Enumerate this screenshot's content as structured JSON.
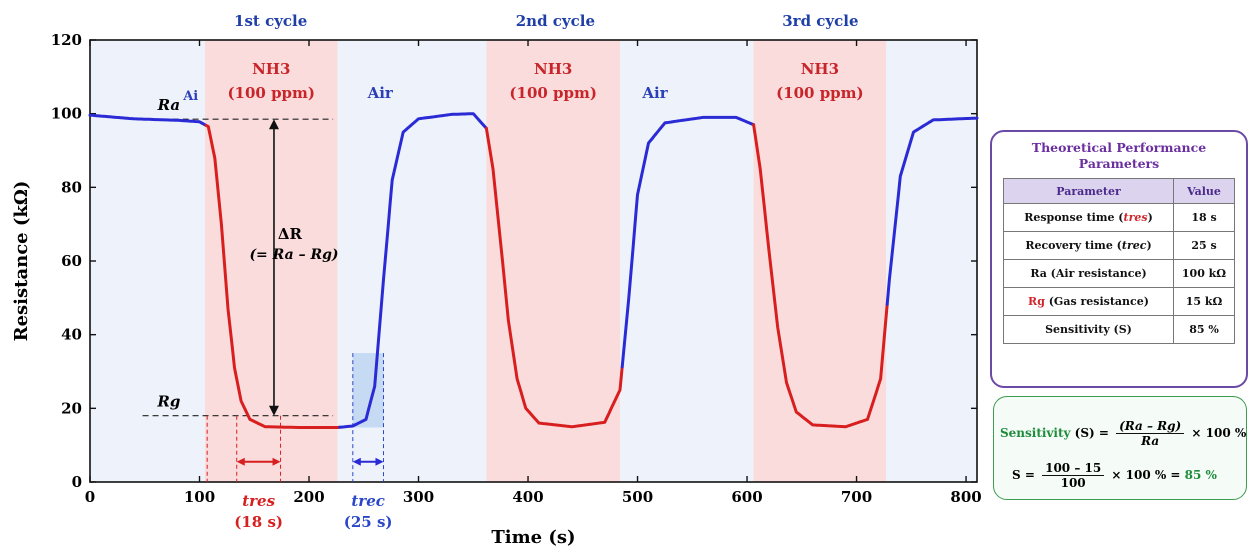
{
  "chart_data": {
    "type": "line",
    "xlabel": "Time (s)",
    "ylabel": "Resistance (kΩ)",
    "xlim": [
      0,
      810
    ],
    "ylim": [
      0,
      120
    ],
    "x_ticks": [
      0,
      100,
      200,
      300,
      400,
      500,
      600,
      700,
      800
    ],
    "y_ticks": [
      0,
      20,
      40,
      60,
      80,
      100,
      120
    ],
    "cycle_labels": [
      {
        "label": "1st cycle",
        "x": 165
      },
      {
        "label": "2nd cycle",
        "x": 425
      },
      {
        "label": "3rd cycle",
        "x": 667
      }
    ],
    "regions": [
      {
        "type": "gas",
        "label1": "NH3",
        "label2": "(100 ppm)",
        "x0": 105,
        "x1": 226
      },
      {
        "type": "gas",
        "label1": "NH3",
        "label2": "(100 ppm)",
        "x0": 362,
        "x1": 484
      },
      {
        "type": "gas",
        "label1": "NH3",
        "label2": "(100 ppm)",
        "x0": 606,
        "x1": 727
      }
    ],
    "air_labels": [
      {
        "label": "Air",
        "x": 265
      },
      {
        "label": "Air",
        "x": 516
      }
    ],
    "series": [
      {
        "color_air": "#2b2bd6",
        "color_gas": "#d81f1f",
        "points": [
          [
            0,
            99.6
          ],
          [
            40,
            98.6
          ],
          [
            80,
            98.2
          ],
          [
            100,
            97.8
          ],
          [
            108,
            96.5
          ],
          [
            114,
            88
          ],
          [
            120,
            70
          ],
          [
            126,
            47
          ],
          [
            132,
            31
          ],
          [
            138,
            22
          ],
          [
            146,
            17
          ],
          [
            160,
            15
          ],
          [
            190,
            14.8
          ],
          [
            226,
            14.8
          ],
          [
            240,
            15.2
          ],
          [
            252,
            17
          ],
          [
            260,
            26
          ],
          [
            268,
            55
          ],
          [
            276,
            82
          ],
          [
            286,
            95
          ],
          [
            300,
            98.6
          ],
          [
            330,
            99.8
          ],
          [
            350,
            100
          ],
          [
            362,
            96
          ],
          [
            368,
            85
          ],
          [
            375,
            65
          ],
          [
            382,
            44
          ],
          [
            390,
            28
          ],
          [
            398,
            20
          ],
          [
            410,
            16
          ],
          [
            440,
            15
          ],
          [
            470,
            16.2
          ],
          [
            484,
            25
          ],
          [
            492,
            50
          ],
          [
            500,
            78
          ],
          [
            510,
            92
          ],
          [
            525,
            97.5
          ],
          [
            560,
            99
          ],
          [
            590,
            99
          ],
          [
            606,
            97
          ],
          [
            612,
            85
          ],
          [
            620,
            63
          ],
          [
            628,
            42
          ],
          [
            636,
            27
          ],
          [
            645,
            19
          ],
          [
            660,
            15.5
          ],
          [
            690,
            15
          ],
          [
            710,
            17
          ],
          [
            722,
            28
          ],
          [
            730,
            55
          ],
          [
            740,
            83
          ],
          [
            752,
            95
          ],
          [
            770,
            98.3
          ],
          [
            810,
            98.8
          ]
        ]
      }
    ],
    "annotations": {
      "Ra": "Ra",
      "Ra_value": 98.5,
      "Rg": "Rg",
      "Rg_value": 18,
      "deltaR_line1": "ΔR",
      "deltaR_line2": "(= Ra – Rg)",
      "t_res_label": "tres",
      "t_res_value": "(18 s)",
      "t_res_x": [
        134,
        174
      ],
      "t_rec_label": "trec",
      "t_rec_value": "(25 s)",
      "t_rec_x": [
        240,
        268
      ],
      "air_small_label": "Ai"
    }
  },
  "panel": {
    "title": "Theoretical Performance Parameters",
    "header_parameter": "Parameter",
    "header_value": "Value",
    "rows": [
      {
        "p_main": "Response time (",
        "p_sym": "tres",
        "p_end": ")",
        "value": "18 s",
        "style": "red"
      },
      {
        "p_main": "Recovery time (",
        "p_sym": "trec",
        "p_end": ")",
        "value": "25 s",
        "style": "blue"
      },
      {
        "p_main": "Ra (Air resistance)",
        "p_sym": "",
        "p_end": "",
        "value": "100 kΩ",
        "style": "none"
      },
      {
        "p_main": "Rg",
        "p_sym": "",
        "p_end": " (Gas resistance)",
        "value": "15 kΩ",
        "style": "rg"
      },
      {
        "p_main": "Sensitivity (S)",
        "p_sym": "",
        "p_end": "",
        "value": "85 %",
        "style": "none"
      }
    ]
  },
  "formula": {
    "label": "Sensitivity",
    "eq1_left": " (S) =",
    "eq1_num": "(Ra – Rg)",
    "eq1_den": "Ra",
    "eq1_right": "× 100 %",
    "eq2_left": "S =",
    "eq2_num": "100 – 15",
    "eq2_den": "100",
    "eq2_mid": "× 100 % =",
    "eq2_result": "85 %"
  }
}
